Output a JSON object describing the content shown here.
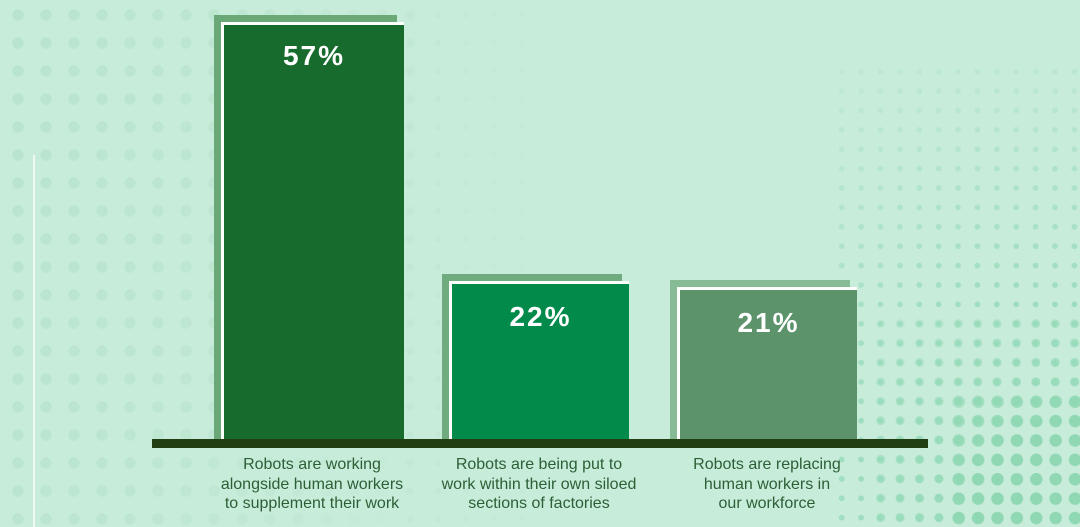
{
  "chart_data": {
    "type": "bar",
    "title": "",
    "categories": [
      "Robots are working alongside human workers to supplement their work",
      "Robots are being put to work within their own siloed sections of factories",
      "Robots are replacing human workers in our workforce"
    ],
    "values": [
      57,
      22,
      21
    ],
    "value_labels": [
      "57%",
      "22%",
      "21%"
    ],
    "unit": "percent",
    "xlabel": "",
    "ylabel": "",
    "ylim": [
      0,
      60
    ],
    "grid": false,
    "legend": false,
    "bar_colors": [
      "#176b2c",
      "#028a4b",
      "#5c936b"
    ],
    "bar_shadow_colors": [
      "#6aa878",
      "#6fab7e",
      "#86bb96"
    ],
    "baseline_color": "#223f14",
    "background_color": "#c8ecda"
  },
  "bars": [
    {
      "value_label": "57%",
      "label": "Robots are working\nalongside human workers\nto supplement their work",
      "color": "#176b2c",
      "shadow_color": "#6aa878"
    },
    {
      "value_label": "22%",
      "label": "Robots are being put to\nwork within their own siloed\nsections of factories",
      "color": "#028a4b",
      "shadow_color": "#6fab7e"
    },
    {
      "value_label": "21%",
      "label": "Robots are replacing\nhuman workers in\nour workforce",
      "color": "#5c936b",
      "shadow_color": "#86bb96"
    }
  ],
  "colors": {
    "label_text": "#2c5f36",
    "value_text": "#ffffff",
    "dots_left": "#b7e3cc",
    "dots_right": "#9adcbc",
    "bar_border": "#fdfffd"
  }
}
